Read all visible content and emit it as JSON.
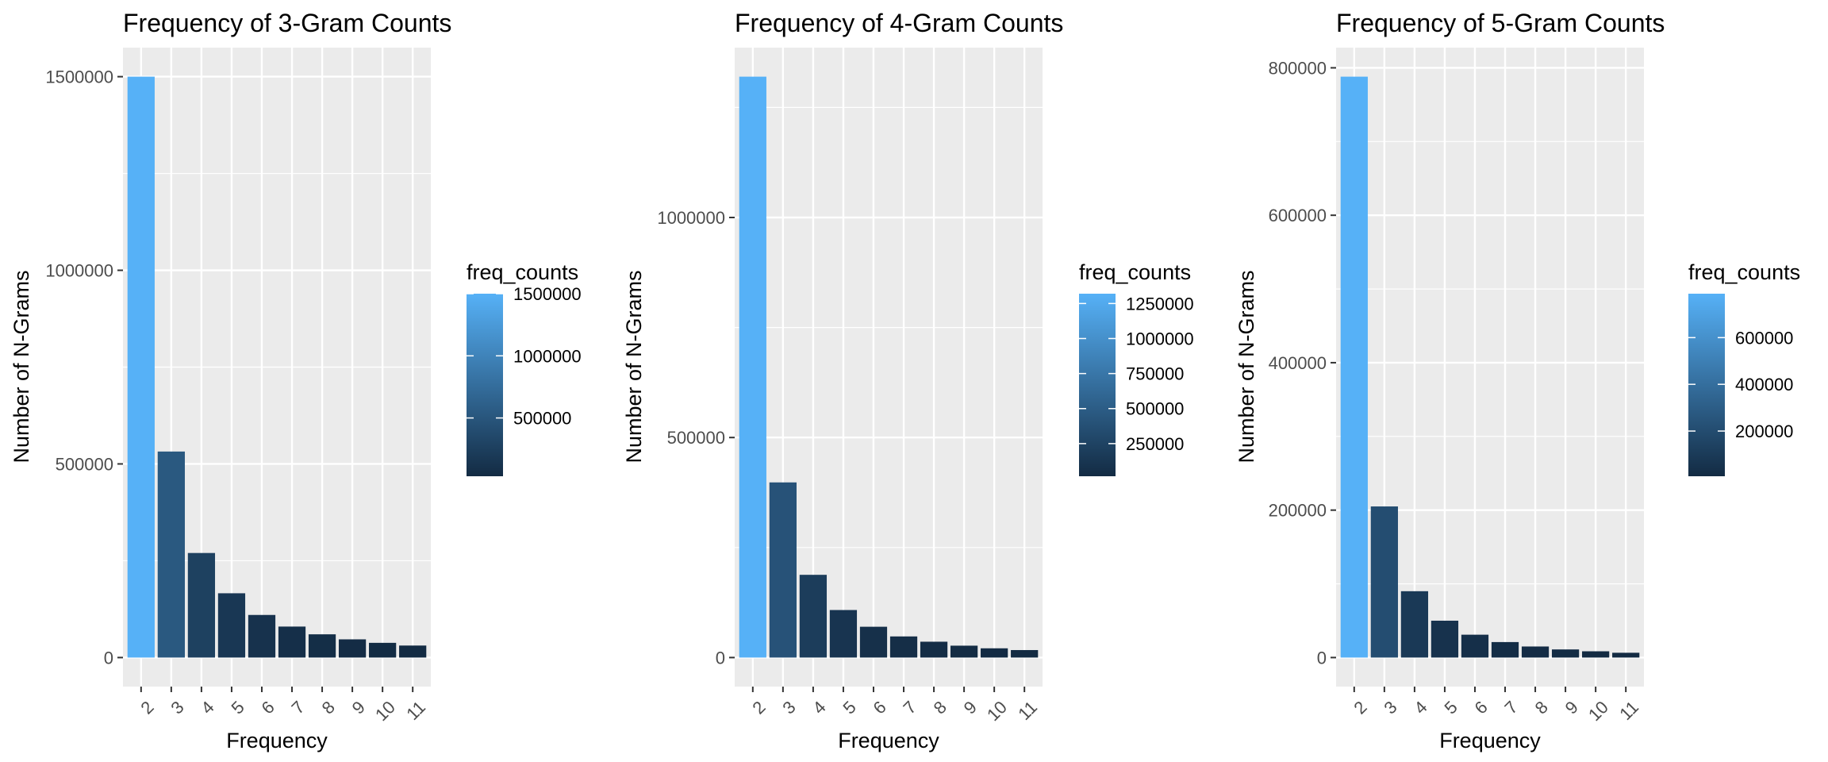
{
  "chart_data": [
    {
      "type": "bar",
      "title": "Frequency of 3-Gram Counts",
      "xlabel": "Frequency",
      "ylabel": "Number of N-Grams",
      "categories": [
        "2",
        "3",
        "4",
        "5",
        "6",
        "7",
        "8",
        "9",
        "10",
        "11"
      ],
      "values": [
        1500000,
        532000,
        270000,
        166000,
        110000,
        80000,
        60000,
        47000,
        38000,
        31000
      ],
      "ylim": [
        -75000,
        1575000
      ],
      "yticks": [
        0,
        500000,
        1000000,
        1500000
      ],
      "ytick_labels": [
        "0",
        "500000",
        "1000000",
        "1500000"
      ],
      "grid": true,
      "legend": {
        "title": "freq_counts",
        "placement": "right",
        "range": [
          31000,
          1500000
        ],
        "ticks": [
          500000,
          1000000,
          1500000
        ],
        "tick_labels": [
          "500000",
          "1000000",
          "1500000"
        ]
      }
    },
    {
      "type": "bar",
      "title": "Frequency of 4-Gram Counts",
      "xlabel": "Frequency",
      "ylabel": "Number of N-Grams",
      "categories": [
        "2",
        "3",
        "4",
        "5",
        "6",
        "7",
        "8",
        "9",
        "10",
        "11"
      ],
      "values": [
        1320000,
        398000,
        188000,
        108000,
        70000,
        48000,
        36000,
        27000,
        21000,
        17000
      ],
      "ylim": [
        -66000,
        1386000
      ],
      "yticks": [
        0,
        500000,
        1000000
      ],
      "ytick_labels": [
        "0",
        "500000",
        "1000000"
      ],
      "grid": true,
      "legend": {
        "title": "freq_counts",
        "placement": "right",
        "range": [
          17000,
          1320000
        ],
        "ticks": [
          250000,
          500000,
          750000,
          1000000,
          1250000
        ],
        "tick_labels": [
          "250000",
          "500000",
          "750000",
          "1000000",
          "1250000"
        ]
      }
    },
    {
      "type": "bar",
      "title": "Frequency of 5-Gram Counts",
      "xlabel": "Frequency",
      "ylabel": "Number of N-Grams",
      "categories": [
        "2",
        "3",
        "4",
        "5",
        "6",
        "7",
        "8",
        "9",
        "10",
        "11"
      ],
      "values": [
        788000,
        205000,
        90000,
        50000,
        31000,
        21000,
        15000,
        11000,
        8500,
        6500
      ],
      "ylim": [
        -39400,
        827400
      ],
      "yticks": [
        0,
        200000,
        400000,
        600000,
        800000
      ],
      "ytick_labels": [
        "0",
        "200000",
        "400000",
        "600000",
        "800000"
      ],
      "grid": true,
      "legend": {
        "title": "freq_counts",
        "placement": "right",
        "range": [
          6500,
          788000
        ],
        "ticks": [
          200000,
          400000,
          600000
        ],
        "tick_labels": [
          "200000",
          "400000",
          "600000"
        ]
      }
    }
  ],
  "colors": {
    "panel_background": "#EBEBEB",
    "grid": "#FFFFFF",
    "gradient_low": "#132B43",
    "gradient_high": "#56B1F7",
    "text": "#000000",
    "tick_text": "#4D4D4D"
  }
}
